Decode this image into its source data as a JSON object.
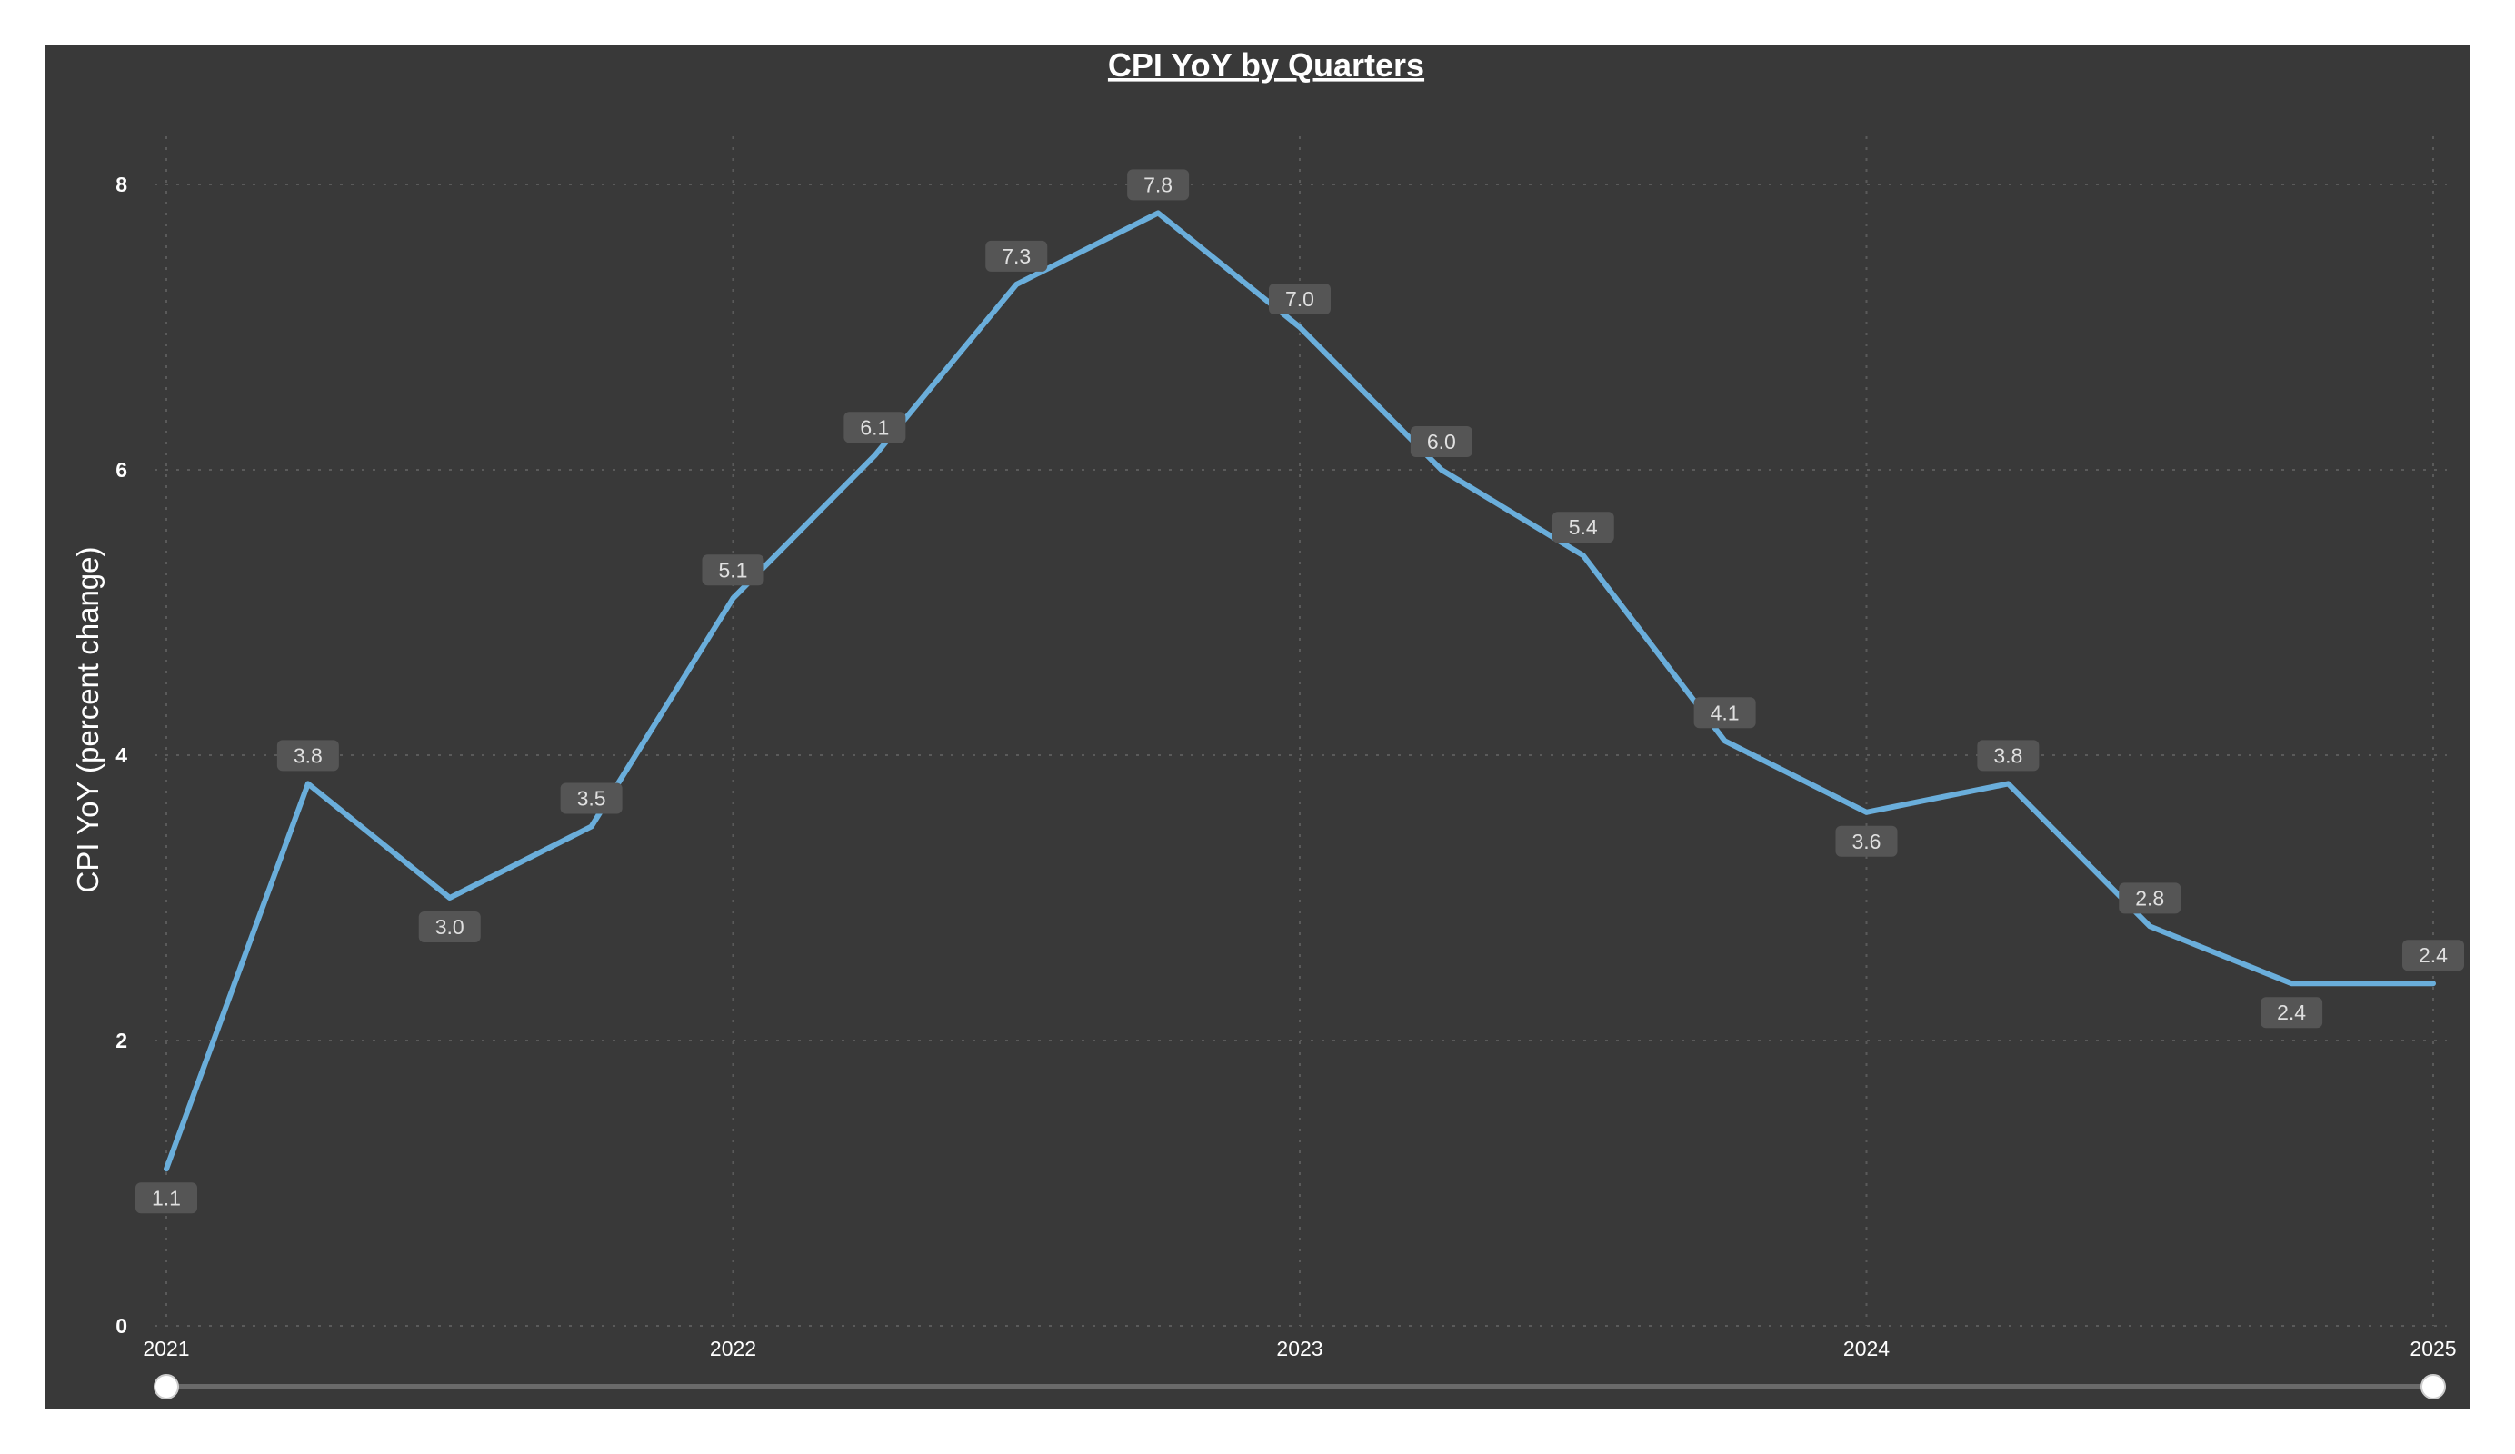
{
  "chart_data": {
    "type": "line",
    "title": "CPI YoY by Quarters",
    "xlabel": "",
    "ylabel": "CPI YoY (percent change)",
    "x": [
      "2021-Q1",
      "2021-Q2",
      "2021-Q3",
      "2021-Q4",
      "2022-Q1",
      "2022-Q2",
      "2022-Q3",
      "2022-Q4",
      "2023-Q1",
      "2023-Q2",
      "2023-Q3",
      "2023-Q4",
      "2024-Q1",
      "2024-Q2",
      "2024-Q3",
      "2024-Q4",
      "2025-Q1"
    ],
    "x_tick_labels": [
      "2021",
      "2022",
      "2023",
      "2024",
      "2025"
    ],
    "y_ticks": [
      0,
      2,
      4,
      6,
      8
    ],
    "ylim": [
      0,
      8.5
    ],
    "grid": true,
    "series": [
      {
        "values": [
          1.1,
          3.8,
          3.0,
          3.5,
          5.1,
          6.1,
          7.3,
          7.8,
          7.0,
          6.0,
          5.4,
          4.1,
          3.6,
          3.8,
          2.8,
          2.4,
          2.4
        ],
        "data_labels": [
          "1.1",
          "3.8",
          "3.0",
          "3.5",
          "5.1",
          "6.1",
          "7.3",
          "7.8",
          "7.0",
          "6.0",
          "5.4",
          "4.1",
          "3.6",
          "3.8",
          "2.8",
          "2.4",
          "2.4"
        ],
        "color": "#6aaedb"
      }
    ],
    "colors": {
      "background": "#393939",
      "text": "#ffffff"
    },
    "range_slider": {
      "start": "2021",
      "end": "2025"
    }
  }
}
